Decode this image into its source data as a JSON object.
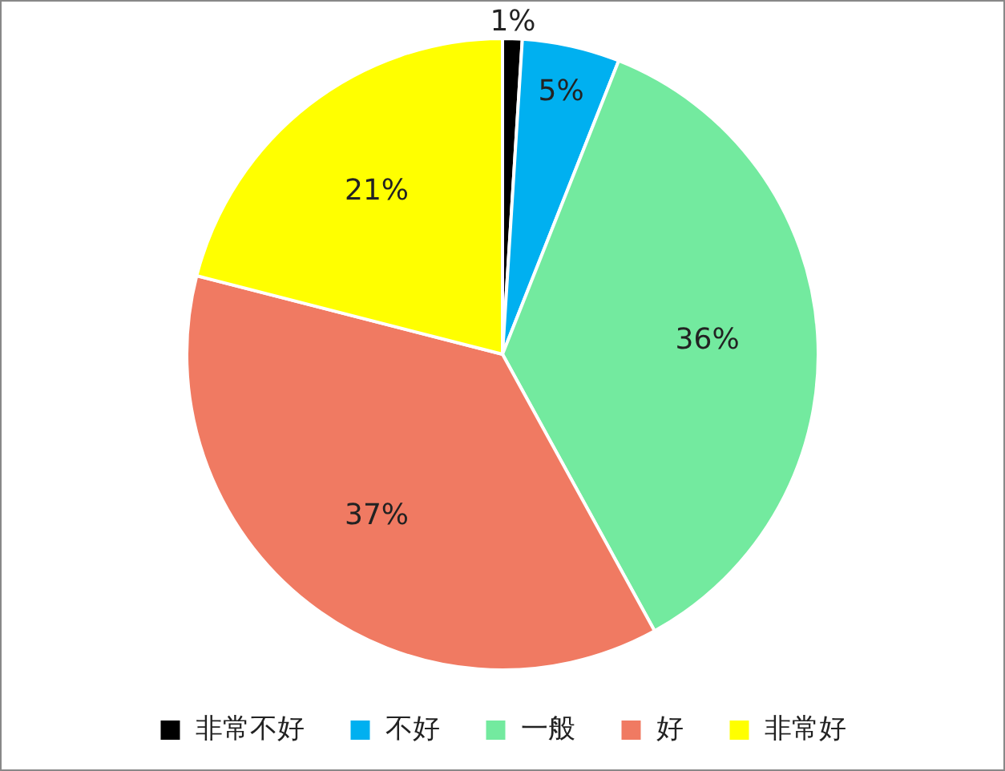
{
  "chart_data": {
    "type": "pie",
    "categories": [
      "非常不好",
      "不好",
      "一般",
      "好",
      "非常好"
    ],
    "values": [
      1,
      5,
      36,
      37,
      21
    ],
    "colors": [
      "#000000",
      "#00b0f0",
      "#73ea9f",
      "#f07a62",
      "#ffff00"
    ],
    "value_labels": [
      "1%",
      "5%",
      "36%",
      "37%",
      "21%"
    ],
    "legend": "bottom"
  }
}
